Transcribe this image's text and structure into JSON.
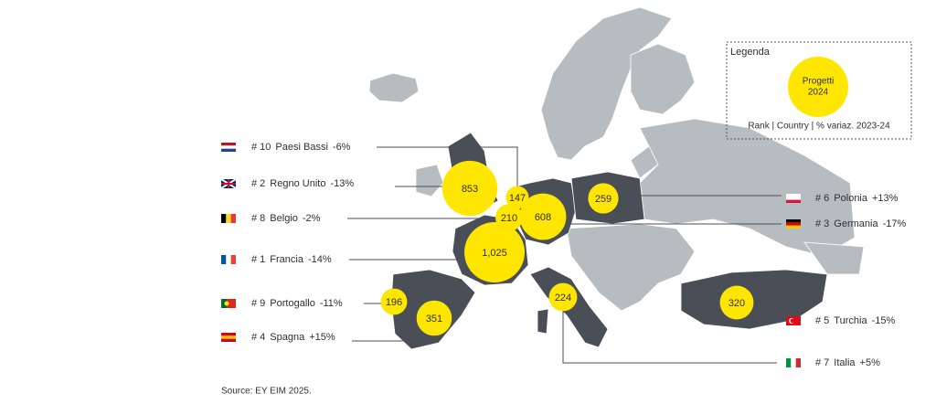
{
  "legend": {
    "title": "Legenda",
    "bubble_line1": "Progetti",
    "bubble_line2": "2024",
    "caption": "Rank | Country | % variaz. 2023-24"
  },
  "countries": [
    {
      "rank": "# 10",
      "name": "Paesi Bassi",
      "change": "-6%",
      "value": 147
    },
    {
      "rank": "# 2",
      "name": "Regno Unito",
      "change": "-13%",
      "value": 853
    },
    {
      "rank": "# 8",
      "name": "Belgio",
      "change": "-2%",
      "value": 210
    },
    {
      "rank": "# 1",
      "name": "Francia",
      "change": "-14%",
      "value": 1025,
      "value_label": "1,025"
    },
    {
      "rank": "# 9",
      "name": "Portogallo",
      "change": "-11%",
      "value": 196
    },
    {
      "rank": "# 4",
      "name": "Spagna",
      "change": "+15%",
      "value": 351
    },
    {
      "rank": "# 6",
      "name": "Polonia",
      "change": "+13%",
      "value": 259
    },
    {
      "rank": "# 3",
      "name": "Germania",
      "change": "-17%",
      "value": 608
    },
    {
      "rank": "# 5",
      "name": "Turchia",
      "change": "-15%",
      "value": 320
    },
    {
      "rank": "# 7",
      "name": "Italia",
      "change": "+5%",
      "value": 224
    }
  ],
  "source": "Source: EY EIM 2025."
}
